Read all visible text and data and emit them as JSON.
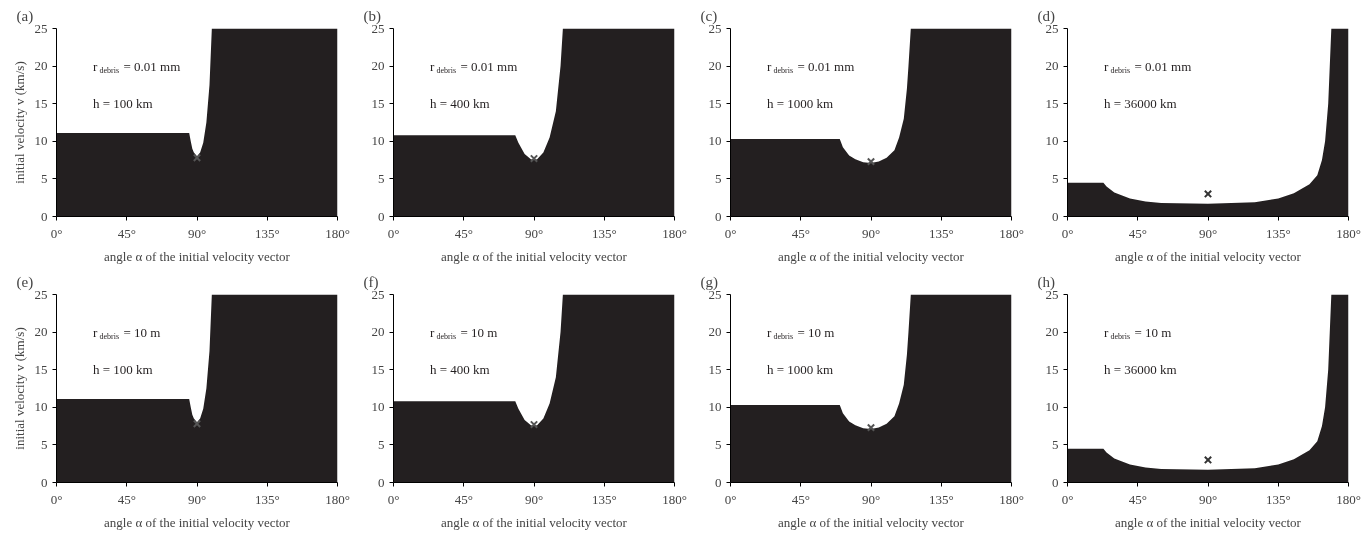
{
  "chart_data": [
    {
      "type": "area",
      "title": "(a)",
      "ylabel": "initial velocity v (km/s)",
      "xlabel": "angle α of the initial velocity vector",
      "xlim": [
        0,
        180
      ],
      "ylim": [
        0,
        25
      ],
      "xticks": [
        {
          "value": 0,
          "label": "0°"
        },
        {
          "value": 45,
          "label": "45°"
        },
        {
          "value": 90,
          "label": "90°"
        },
        {
          "value": 135,
          "label": "135°"
        },
        {
          "value": 180,
          "label": "180°"
        }
      ],
      "yticks": [
        0,
        5,
        10,
        15,
        20,
        25
      ],
      "grid": false,
      "annotations": [
        "r$_{debris}$ = 0.01 mm",
        "h = 100 km"
      ],
      "series": [
        {
          "color": "#231f20",
          "x": [
            0,
            85,
            86,
            87,
            88,
            90,
            92,
            94,
            96,
            98,
            99.5,
            180
          ],
          "values": [
            11.1,
            11.1,
            10.0,
            9.0,
            8.5,
            8.0,
            8.5,
            9.8,
            12.5,
            17.5,
            25,
            25
          ]
        },
        {
          "type": "scatter",
          "marker": "cross",
          "color": "#555555",
          "x": [
            90
          ],
          "values": [
            7.8
          ]
        }
      ]
    },
    {
      "type": "area",
      "title": "(b)",
      "xlabel": "angle α of the initial velocity vector",
      "xlim": [
        0,
        180
      ],
      "ylim": [
        0,
        25
      ],
      "xticks": [
        {
          "value": 0,
          "label": "0°"
        },
        {
          "value": 45,
          "label": "45°"
        },
        {
          "value": 90,
          "label": "90°"
        },
        {
          "value": 135,
          "label": "135°"
        },
        {
          "value": 180,
          "label": "180°"
        }
      ],
      "yticks": [
        0,
        5,
        10,
        15,
        20,
        25
      ],
      "grid": false,
      "annotations": [
        "r$_{debris}$ = 0.01 mm",
        "h = 400 km"
      ],
      "series": [
        {
          "color": "#231f20",
          "x": [
            0,
            78,
            80,
            84,
            88,
            90,
            92,
            96,
            100,
            104,
            107,
            108.5,
            180
          ],
          "values": [
            10.8,
            10.8,
            9.8,
            8.3,
            7.6,
            7.5,
            7.6,
            8.5,
            10.5,
            14,
            20,
            25,
            25
          ]
        },
        {
          "type": "scatter",
          "marker": "cross",
          "color": "#555555",
          "x": [
            90
          ],
          "values": [
            7.7
          ]
        }
      ]
    },
    {
      "type": "area",
      "title": "(c)",
      "xlabel": "angle α of the initial velocity vector",
      "xlim": [
        0,
        180
      ],
      "ylim": [
        0,
        25
      ],
      "xticks": [
        {
          "value": 0,
          "label": "0°"
        },
        {
          "value": 45,
          "label": "45°"
        },
        {
          "value": 90,
          "label": "90°"
        },
        {
          "value": 135,
          "label": "135°"
        },
        {
          "value": 180,
          "label": "180°"
        }
      ],
      "yticks": [
        0,
        5,
        10,
        15,
        20,
        25
      ],
      "grid": false,
      "annotations": [
        "r$_{debris}$ = 0.01 mm",
        "h = 1000 km"
      ],
      "series": [
        {
          "color": "#231f20",
          "x": [
            0,
            70,
            72,
            76,
            80,
            85,
            90,
            95,
            100,
            105,
            108,
            111,
            113,
            114,
            115.5,
            180
          ],
          "values": [
            10.3,
            10.3,
            9.2,
            8.1,
            7.6,
            7.2,
            7.1,
            7.3,
            7.8,
            8.8,
            10.5,
            13,
            17,
            20,
            25,
            25
          ]
        },
        {
          "type": "scatter",
          "marker": "cross",
          "color": "#555555",
          "x": [
            90
          ],
          "values": [
            7.3
          ]
        }
      ]
    },
    {
      "type": "area",
      "title": "(d)",
      "xlabel": "angle α of the initial velocity vector",
      "xlim": [
        0,
        180
      ],
      "ylim": [
        0,
        25
      ],
      "xticks": [
        {
          "value": 0,
          "label": "0°"
        },
        {
          "value": 45,
          "label": "45°"
        },
        {
          "value": 90,
          "label": "90°"
        },
        {
          "value": 135,
          "label": "135°"
        },
        {
          "value": 180,
          "label": "180°"
        }
      ],
      "yticks": [
        0,
        5,
        10,
        15,
        20,
        25
      ],
      "grid": false,
      "annotations": [
        "r$_{debris}$ = 0.01 mm",
        "h = 36000 km"
      ],
      "series": [
        {
          "color": "#231f20",
          "x": [
            0,
            23,
            25,
            30,
            40,
            50,
            60,
            90,
            120,
            135,
            145,
            155,
            160,
            163,
            165,
            167,
            168,
            169,
            180
          ],
          "values": [
            4.5,
            4.5,
            4.0,
            3.2,
            2.4,
            2.0,
            1.8,
            1.7,
            1.9,
            2.4,
            3.1,
            4.3,
            5.5,
            7.5,
            10,
            15,
            20,
            25,
            25
          ]
        },
        {
          "type": "scatter",
          "marker": "cross",
          "color": "#333333",
          "x": [
            90
          ],
          "values": [
            3.0
          ]
        }
      ]
    },
    {
      "type": "area",
      "title": "(e)",
      "ylabel": "initial velocity v (km/s)",
      "xlabel": "angle α of the initial velocity vector",
      "xlim": [
        0,
        180
      ],
      "ylim": [
        0,
        25
      ],
      "xticks": [
        {
          "value": 0,
          "label": "0°"
        },
        {
          "value": 45,
          "label": "45°"
        },
        {
          "value": 90,
          "label": "90°"
        },
        {
          "value": 135,
          "label": "135°"
        },
        {
          "value": 180,
          "label": "180°"
        }
      ],
      "yticks": [
        0,
        5,
        10,
        15,
        20,
        25
      ],
      "grid": false,
      "annotations": [
        "r$_{debris}$ = 10 m",
        "h = 100 km"
      ],
      "series": [
        {
          "color": "#231f20",
          "x": [
            0,
            85,
            86,
            87,
            88,
            90,
            92,
            94,
            96,
            98,
            99.5,
            180
          ],
          "values": [
            11.1,
            11.1,
            10.0,
            9.0,
            8.5,
            8.0,
            8.5,
            9.8,
            12.5,
            17.5,
            25,
            25
          ]
        },
        {
          "type": "scatter",
          "marker": "cross",
          "color": "#555555",
          "x": [
            90
          ],
          "values": [
            7.8
          ]
        }
      ]
    },
    {
      "type": "area",
      "title": "(f)",
      "xlabel": "angle α of the initial velocity vector",
      "xlim": [
        0,
        180
      ],
      "ylim": [
        0,
        25
      ],
      "xticks": [
        {
          "value": 0,
          "label": "0°"
        },
        {
          "value": 45,
          "label": "45°"
        },
        {
          "value": 90,
          "label": "90°"
        },
        {
          "value": 135,
          "label": "135°"
        },
        {
          "value": 180,
          "label": "180°"
        }
      ],
      "yticks": [
        0,
        5,
        10,
        15,
        20,
        25
      ],
      "grid": false,
      "annotations": [
        "r$_{debris}$ = 10 m",
        "h = 400 km"
      ],
      "series": [
        {
          "color": "#231f20",
          "x": [
            0,
            78,
            80,
            84,
            88,
            90,
            92,
            96,
            100,
            104,
            107,
            108.5,
            180
          ],
          "values": [
            10.8,
            10.8,
            9.8,
            8.3,
            7.6,
            7.5,
            7.6,
            8.5,
            10.5,
            14,
            20,
            25,
            25
          ]
        },
        {
          "type": "scatter",
          "marker": "cross",
          "color": "#555555",
          "x": [
            90
          ],
          "values": [
            7.7
          ]
        }
      ]
    },
    {
      "type": "area",
      "title": "(g)",
      "xlabel": "angle α of the initial velocity vector",
      "xlim": [
        0,
        180
      ],
      "ylim": [
        0,
        25
      ],
      "xticks": [
        {
          "value": 0,
          "label": "0°"
        },
        {
          "value": 45,
          "label": "45°"
        },
        {
          "value": 90,
          "label": "90°"
        },
        {
          "value": 135,
          "label": "135°"
        },
        {
          "value": 180,
          "label": "180°"
        }
      ],
      "yticks": [
        0,
        5,
        10,
        15,
        20,
        25
      ],
      "grid": false,
      "annotations": [
        "r$_{debris}$ = 10 m",
        "h = 1000 km"
      ],
      "series": [
        {
          "color": "#231f20",
          "x": [
            0,
            70,
            72,
            76,
            80,
            85,
            90,
            95,
            100,
            105,
            108,
            111,
            113,
            114,
            115.5,
            180
          ],
          "values": [
            10.3,
            10.3,
            9.2,
            8.1,
            7.6,
            7.2,
            7.1,
            7.3,
            7.8,
            8.8,
            10.5,
            13,
            17,
            20,
            25,
            25
          ]
        },
        {
          "type": "scatter",
          "marker": "cross",
          "color": "#555555",
          "x": [
            90
          ],
          "values": [
            7.3
          ]
        }
      ]
    },
    {
      "type": "area",
      "title": "(h)",
      "xlabel": "angle α of the initial velocity vector",
      "xlim": [
        0,
        180
      ],
      "ylim": [
        0,
        25
      ],
      "xticks": [
        {
          "value": 0,
          "label": "0°"
        },
        {
          "value": 45,
          "label": "45°"
        },
        {
          "value": 90,
          "label": "90°"
        },
        {
          "value": 135,
          "label": "135°"
        },
        {
          "value": 180,
          "label": "180°"
        }
      ],
      "yticks": [
        0,
        5,
        10,
        15,
        20,
        25
      ],
      "grid": false,
      "annotations": [
        "r$_{debris}$ = 10 m",
        "h = 36000 km"
      ],
      "series": [
        {
          "color": "#231f20",
          "x": [
            0,
            23,
            25,
            30,
            40,
            50,
            60,
            90,
            120,
            135,
            145,
            155,
            160,
            163,
            165,
            167,
            168,
            169,
            180
          ],
          "values": [
            4.5,
            4.5,
            4.0,
            3.2,
            2.4,
            2.0,
            1.8,
            1.7,
            1.9,
            2.4,
            3.1,
            4.3,
            5.5,
            7.5,
            10,
            15,
            20,
            25,
            25
          ]
        },
        {
          "type": "scatter",
          "marker": "cross",
          "color": "#333333",
          "x": [
            90
          ],
          "values": [
            3.0
          ]
        }
      ]
    }
  ]
}
